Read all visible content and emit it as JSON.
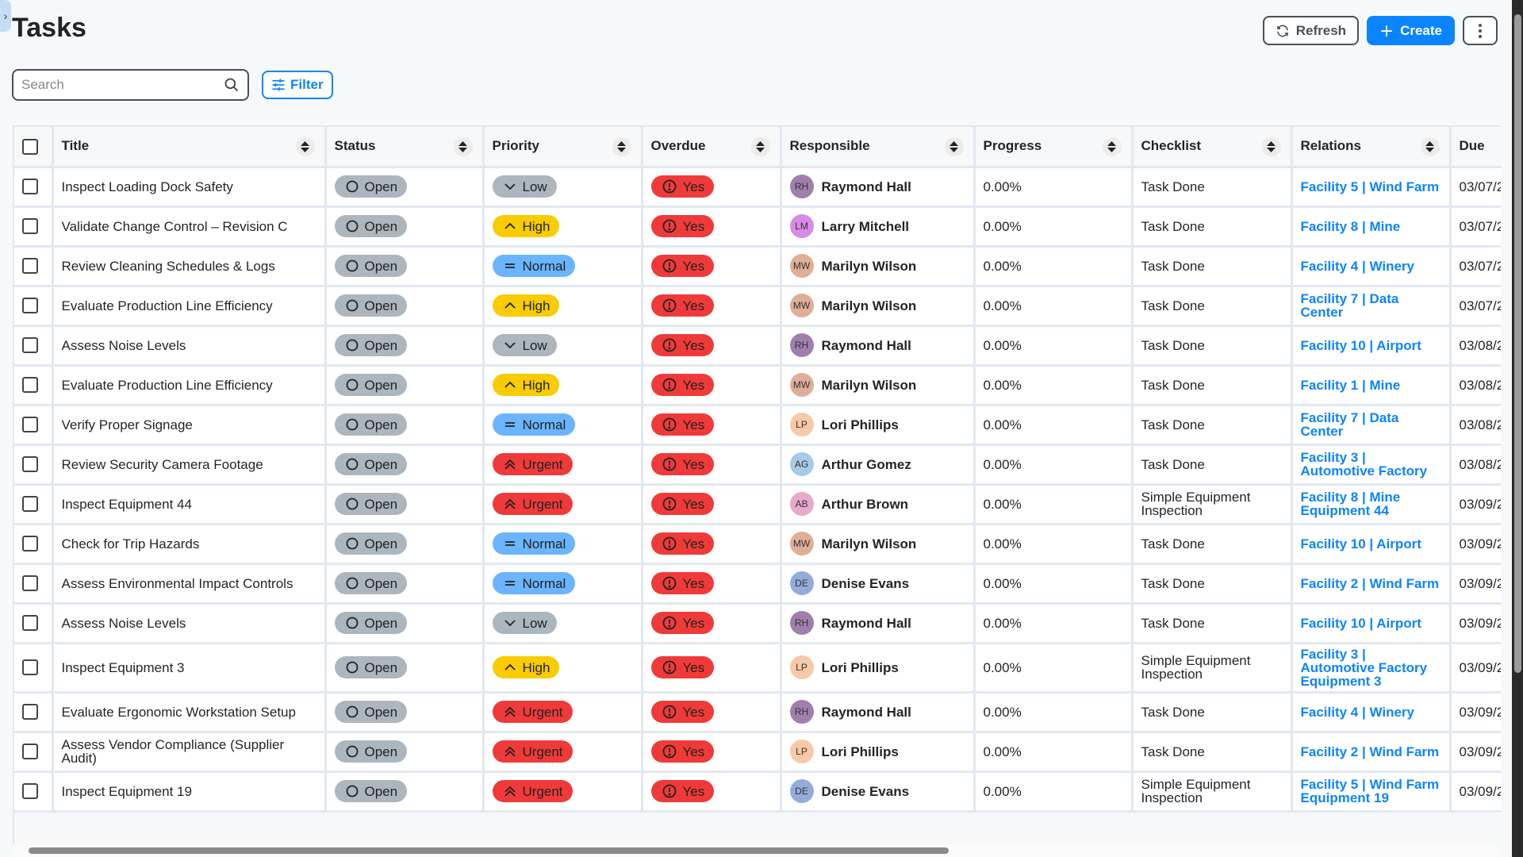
{
  "page": {
    "title": "Tasks"
  },
  "toolbar": {
    "refresh_label": "Refresh",
    "create_label": "Create",
    "filter_label": "Filter"
  },
  "search": {
    "placeholder": "Search",
    "value": ""
  },
  "columns": [
    "Title",
    "Status",
    "Priority",
    "Overdue",
    "Responsible",
    "Progress",
    "Checklist",
    "Relations",
    "Due"
  ],
  "colors": {
    "accent": "#0b84ff",
    "urgent": "#f03a3a",
    "high": "#f8cc00",
    "normal": "#6bb5ff",
    "low": "#adb5bd",
    "overdue": "#f03a3a"
  },
  "rows": [
    {
      "title": "Inspect Loading Dock Safety",
      "status": "Open",
      "priority": "Low",
      "overdue": "Yes",
      "initials": "RH",
      "responsible": "Raymond Hall",
      "avatar_color": "#a07fac",
      "progress": "0.00%",
      "checklist": "Task Done",
      "relations": "Facility 5 | Wind Farm",
      "due": "03/07/2"
    },
    {
      "title": "Validate Change Control – Revision C",
      "status": "Open",
      "priority": "High",
      "overdue": "Yes",
      "initials": "LM",
      "responsible": "Larry Mitchell",
      "avatar_color": "#d98ae8",
      "progress": "0.00%",
      "checklist": "Task Done",
      "relations": "Facility 8 | Mine",
      "due": "03/07/2"
    },
    {
      "title": "Review Cleaning Schedules & Logs",
      "status": "Open",
      "priority": "Normal",
      "overdue": "Yes",
      "initials": "MW",
      "responsible": "Marilyn Wilson",
      "avatar_color": "#dfae97",
      "progress": "0.00%",
      "checklist": "Task Done",
      "relations": "Facility 4 | Winery",
      "due": "03/07/2"
    },
    {
      "title": "Evaluate Production Line Efficiency",
      "status": "Open",
      "priority": "High",
      "overdue": "Yes",
      "initials": "MW",
      "responsible": "Marilyn Wilson",
      "avatar_color": "#dfae97",
      "progress": "0.00%",
      "checklist": "Task Done",
      "relations": "Facility 7 | Data Center",
      "due": "03/07/2"
    },
    {
      "title": "Assess Noise Levels",
      "status": "Open",
      "priority": "Low",
      "overdue": "Yes",
      "initials": "RH",
      "responsible": "Raymond Hall",
      "avatar_color": "#a07fac",
      "progress": "0.00%",
      "checklist": "Task Done",
      "relations": "Facility 10 | Airport",
      "due": "03/08/2"
    },
    {
      "title": "Evaluate Production Line Efficiency",
      "status": "Open",
      "priority": "High",
      "overdue": "Yes",
      "initials": "MW",
      "responsible": "Marilyn Wilson",
      "avatar_color": "#dfae97",
      "progress": "0.00%",
      "checklist": "Task Done",
      "relations": "Facility 1 | Mine",
      "due": "03/08/2"
    },
    {
      "title": "Verify Proper Signage",
      "status": "Open",
      "priority": "Normal",
      "overdue": "Yes",
      "initials": "LP",
      "responsible": "Lori Phillips",
      "avatar_color": "#f8c9a8",
      "progress": "0.00%",
      "checklist": "Task Done",
      "relations": "Facility 7 | Data Center",
      "due": "03/08/2"
    },
    {
      "title": "Review Security Camera Footage",
      "status": "Open",
      "priority": "Urgent",
      "overdue": "Yes",
      "initials": "AG",
      "responsible": "Arthur Gomez",
      "avatar_color": "#a9c9e8",
      "progress": "0.00%",
      "checklist": "Task Done",
      "relations": "Facility 3 | Automotive Factory",
      "due": "03/08/2"
    },
    {
      "title": "Inspect Equipment 44",
      "status": "Open",
      "priority": "Urgent",
      "overdue": "Yes",
      "initials": "AB",
      "responsible": "Arthur Brown",
      "avatar_color": "#e8a9cc",
      "progress": "0.00%",
      "checklist": "Simple Equipment Inspection",
      "relations": "Facility 8 | Mine Equipment 44",
      "due": "03/09/2"
    },
    {
      "title": "Check for Trip Hazards",
      "status": "Open",
      "priority": "Normal",
      "overdue": "Yes",
      "initials": "MW",
      "responsible": "Marilyn Wilson",
      "avatar_color": "#dfae97",
      "progress": "0.00%",
      "checklist": "Task Done",
      "relations": "Facility 10 | Airport",
      "due": "03/09/2"
    },
    {
      "title": "Assess Environmental Impact Controls",
      "status": "Open",
      "priority": "Normal",
      "overdue": "Yes",
      "initials": "DE",
      "responsible": "Denise Evans",
      "avatar_color": "#94acd8",
      "progress": "0.00%",
      "checklist": "Task Done",
      "relations": "Facility 2 | Wind Farm",
      "due": "03/09/2"
    },
    {
      "title": "Assess Noise Levels",
      "status": "Open",
      "priority": "Low",
      "overdue": "Yes",
      "initials": "RH",
      "responsible": "Raymond Hall",
      "avatar_color": "#a07fac",
      "progress": "0.00%",
      "checklist": "Task Done",
      "relations": "Facility 10 | Airport",
      "due": "03/09/2"
    },
    {
      "title": "Inspect Equipment 3",
      "status": "Open",
      "priority": "High",
      "overdue": "Yes",
      "initials": "LP",
      "responsible": "Lori Phillips",
      "avatar_color": "#f8c9a8",
      "progress": "0.00%",
      "checklist": "Simple Equipment Inspection",
      "relations": "Facility 3 | Automotive Factory Equipment 3",
      "due": "03/09/2"
    },
    {
      "title": "Evaluate Ergonomic Workstation Setup",
      "status": "Open",
      "priority": "Urgent",
      "overdue": "Yes",
      "initials": "RH",
      "responsible": "Raymond Hall",
      "avatar_color": "#a07fac",
      "progress": "0.00%",
      "checklist": "Task Done",
      "relations": "Facility 4 | Winery",
      "due": "03/09/2"
    },
    {
      "title": "Assess Vendor Compliance (Supplier Audit)",
      "status": "Open",
      "priority": "Urgent",
      "overdue": "Yes",
      "initials": "LP",
      "responsible": "Lori Phillips",
      "avatar_color": "#f8c9a8",
      "progress": "0.00%",
      "checklist": "Task Done",
      "relations": "Facility 2 | Wind Farm",
      "due": "03/09/2"
    },
    {
      "title": "Inspect Equipment 19",
      "status": "Open",
      "priority": "Urgent",
      "overdue": "Yes",
      "initials": "DE",
      "responsible": "Denise Evans",
      "avatar_color": "#94acd8",
      "progress": "0.00%",
      "checklist": "Simple Equipment Inspection",
      "relations": "Facility 5 | Wind Farm Equipment 19",
      "due": "03/09/2"
    }
  ]
}
